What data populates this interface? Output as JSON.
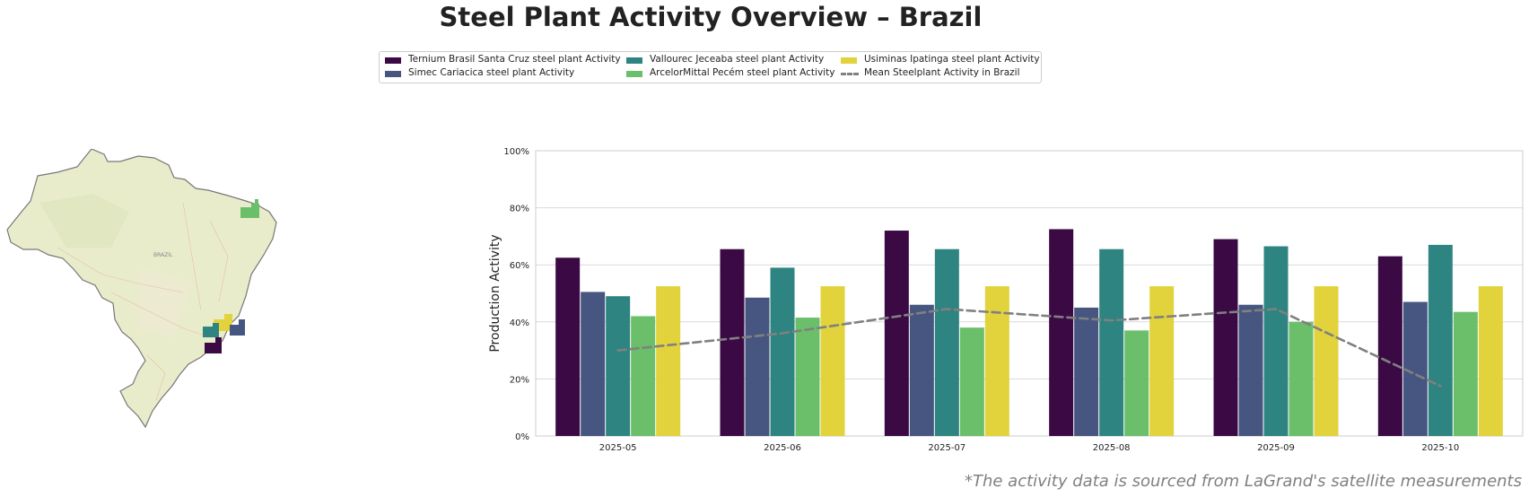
{
  "title": "Steel Plant Activity Overview – Brazil",
  "footnote": "*The activity data is sourced from LaGrand's satellite measurements",
  "map": {
    "country_label": "BRAZIL"
  },
  "legend": [
    {
      "label": "Ternium Brasil Santa Cruz steel plant Activity",
      "color": "#3b0a45"
    },
    {
      "label": "Simec Cariacica steel plant Activity",
      "color": "#465680"
    },
    {
      "label": "Vallourec Jeceaba steel plant Activity",
      "color": "#2e8480"
    },
    {
      "label": "ArcelorMittal Pecém steel plant Activity",
      "color": "#6bbf6b"
    },
    {
      "label": "Usiminas Ipatinga steel plant Activity",
      "color": "#e2d23b"
    },
    {
      "label": "Mean Steelplant Activity in Brazil",
      "color": "#808080",
      "style": "dashed-line"
    }
  ],
  "chart_data": {
    "type": "bar",
    "ylabel": "Production Activity",
    "xlabel": "",
    "ylim": [
      0,
      100
    ],
    "yticks": [
      "0%",
      "20%",
      "40%",
      "60%",
      "80%",
      "100%"
    ],
    "grid": "horizontal",
    "categories": [
      "2025-05",
      "2025-06",
      "2025-07",
      "2025-08",
      "2025-09",
      "2025-10"
    ],
    "series": [
      {
        "name": "Ternium Brasil Santa Cruz steel plant Activity",
        "color": "#3b0a45",
        "values": [
          62.5,
          65.5,
          72,
          72.5,
          69,
          63
        ]
      },
      {
        "name": "Simec Cariacica steel plant Activity",
        "color": "#465680",
        "values": [
          50.5,
          48.5,
          46,
          45,
          46,
          47
        ]
      },
      {
        "name": "Vallourec Jeceaba steel plant Activity",
        "color": "#2e8480",
        "values": [
          49,
          59,
          65.5,
          65.5,
          66.5,
          67
        ]
      },
      {
        "name": "ArcelorMittal Pecém steel plant Activity",
        "color": "#6bbf6b",
        "values": [
          42,
          41.5,
          38,
          37,
          40,
          43.5
        ]
      },
      {
        "name": "Usiminas Ipatinga steel plant Activity",
        "color": "#e2d23b",
        "values": [
          52.5,
          52.5,
          52.5,
          52.5,
          52.5,
          52.5
        ]
      }
    ],
    "mean_line": {
      "name": "Mean Steelplant Activity in Brazil",
      "color": "#808080",
      "values": [
        30,
        36,
        44.5,
        40.5,
        44.5,
        17.5
      ]
    }
  }
}
